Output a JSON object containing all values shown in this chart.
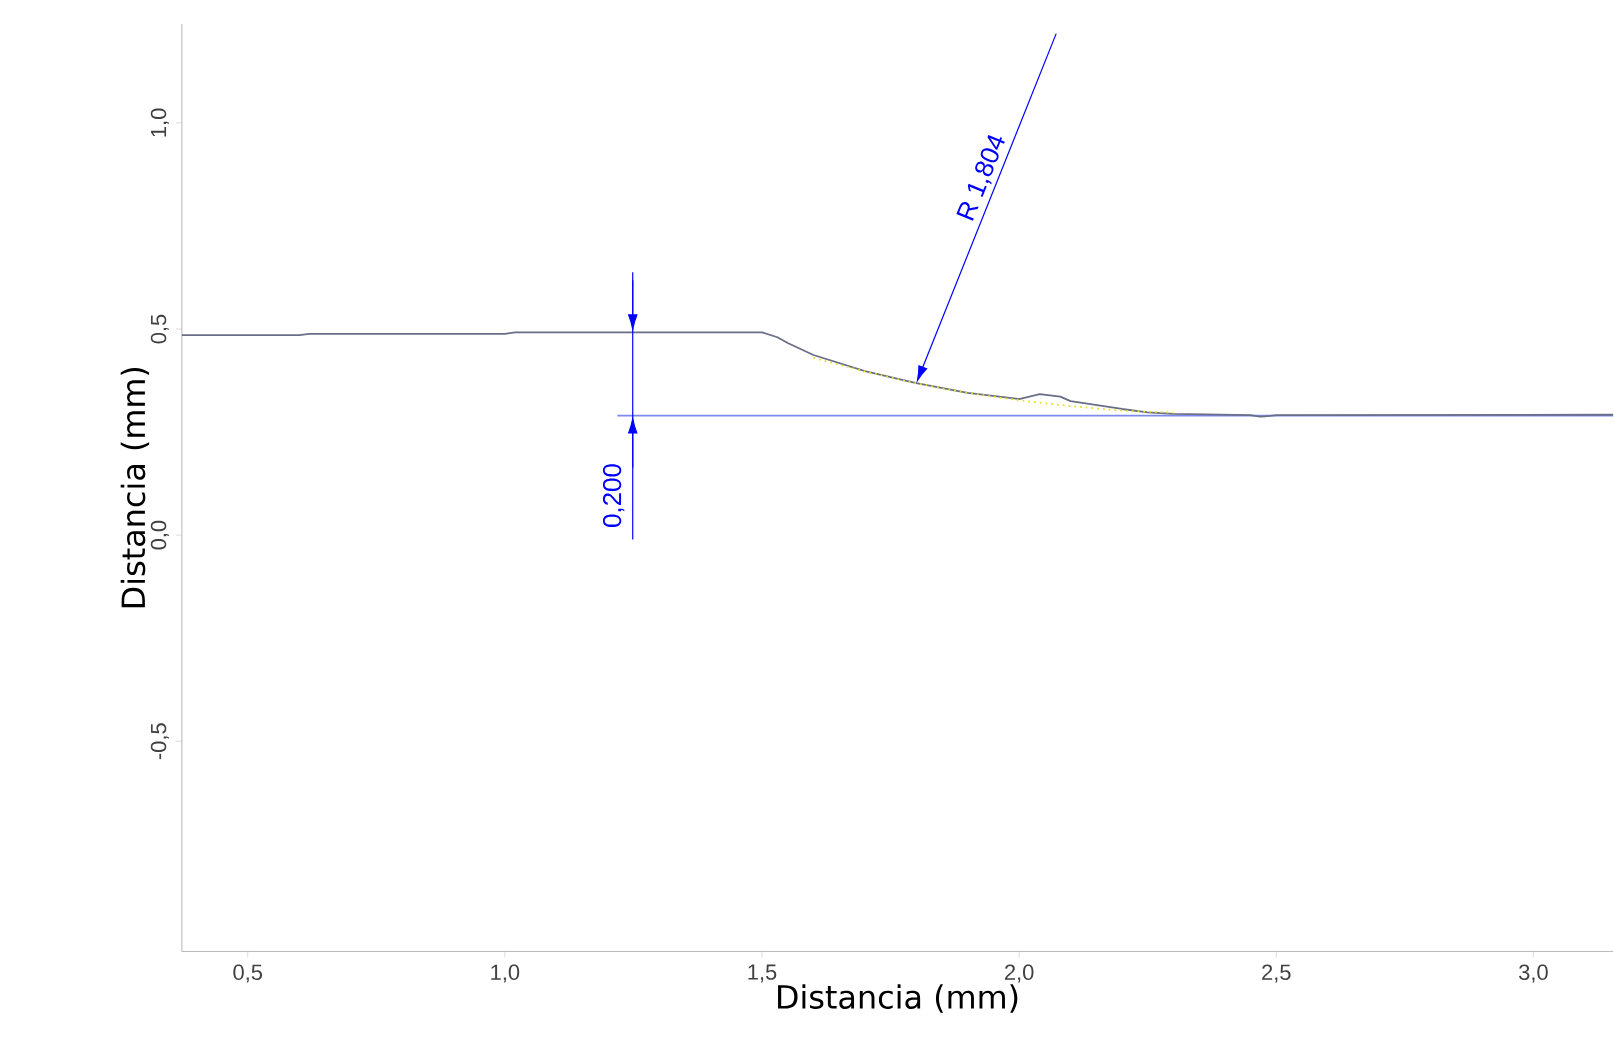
{
  "chart_data": {
    "type": "line",
    "xlabel": "Distancia (mm)",
    "ylabel": "Distancia (mm)",
    "xlim": [
      0.372,
      3.155
    ],
    "ylim": [
      -1.01,
      1.24
    ],
    "xticks": [
      {
        "value": 0.5,
        "label": "0,5"
      },
      {
        "value": 1.0,
        "label": "1,0"
      },
      {
        "value": 1.5,
        "label": "1,5"
      },
      {
        "value": 2.0,
        "label": "2,0"
      },
      {
        "value": 2.5,
        "label": "2,5"
      },
      {
        "value": 3.0,
        "label": "3,0"
      }
    ],
    "yticks": [
      {
        "value": -0.5,
        "label": "-0,5"
      },
      {
        "value": 0.0,
        "label": "0,0"
      },
      {
        "value": 0.5,
        "label": "0,5"
      },
      {
        "value": 1.0,
        "label": "1,0"
      }
    ],
    "series": [
      {
        "color": "#6a6e86",
        "x": [
          0.372,
          0.6,
          0.62,
          1.0,
          1.02,
          1.5,
          1.53,
          1.55,
          1.6,
          1.7,
          1.8,
          1.9,
          2.0,
          2.04,
          2.08,
          2.1,
          2.2,
          2.25,
          2.3,
          2.45,
          2.47,
          2.5,
          3.155
        ],
        "values": [
          0.485,
          0.485,
          0.488,
          0.488,
          0.492,
          0.492,
          0.48,
          0.466,
          0.437,
          0.398,
          0.369,
          0.345,
          0.33,
          0.342,
          0.336,
          0.325,
          0.306,
          0.298,
          0.294,
          0.291,
          0.287,
          0.291,
          0.292
        ]
      },
      {
        "color": "#e6e020",
        "line_style": "dotted",
        "x": [
          1.6,
          1.7,
          1.8,
          1.9,
          2.0,
          2.1,
          2.2,
          2.3
        ],
        "values": [
          0.43,
          0.397,
          0.368,
          0.345,
          0.327,
          0.313,
          0.302,
          0.297
        ]
      }
    ],
    "ref_lines": [
      {
        "axis": "y",
        "value": 0.29,
        "color": "#7f8af0"
      }
    ],
    "annotations": [
      "R 1,804",
      "0,200"
    ]
  }
}
